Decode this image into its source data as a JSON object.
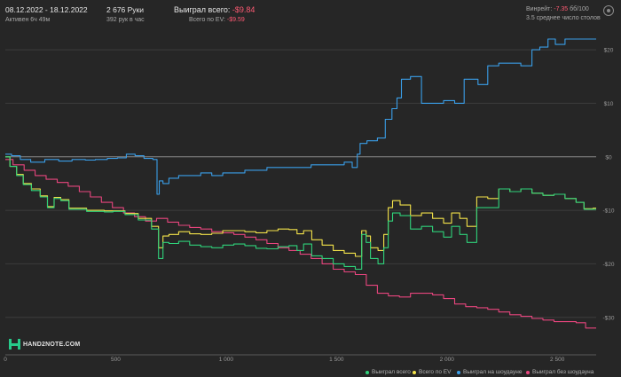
{
  "header": {
    "date_range": "08.12.2022 - 18.12.2022",
    "active_time": "Активен 6ч 49м",
    "hands": "2 676 Руки",
    "hands_per_hour": "392 рук в час",
    "won_total_label": "Выиграл всего:",
    "won_total_value": "-$9.84",
    "ev_total_label": "Всего по EV:",
    "ev_total_value": "-$9.59",
    "winrate_label": "Винрейт:",
    "winrate_value": "-7.35",
    "winrate_unit": "бб/100",
    "avg_tables": "3.5 среднее число столов"
  },
  "logo": {
    "text": "HAND2NOTE.COM"
  },
  "icons": {
    "settings": "gear-icon",
    "logo": "hand2note-logo-icon"
  },
  "chart_data": {
    "type": "line",
    "xlim": [
      0,
      2676
    ],
    "ylim": [
      -37,
      23
    ],
    "x_ticks": [
      0,
      500,
      1000,
      1500,
      2000,
      2500
    ],
    "x_tick_labels": [
      "0",
      "500",
      "1 000",
      "1 500",
      "2 000",
      "2 500"
    ],
    "y_ticks": [
      20,
      10,
      0,
      -10,
      -20,
      -30
    ],
    "y_tick_labels": [
      "$20",
      "$10",
      "$0",
      "-$10",
      "-$20",
      "-$30"
    ],
    "grid": true,
    "legend_position": "bottom-right",
    "series": [
      {
        "name": "Выиграл всего",
        "color": "#2fd27a",
        "x": [
          0,
          30,
          60,
          90,
          130,
          170,
          200,
          230,
          260,
          300,
          340,
          380,
          420,
          460,
          500,
          560,
          620,
          680,
          700,
          720,
          750,
          800,
          850,
          900,
          950,
          1000,
          1050,
          1100,
          1150,
          1200,
          1250,
          1300,
          1330,
          1360,
          1400,
          1450,
          1500,
          1550,
          1600,
          1620,
          1640,
          1660,
          1700,
          1720,
          1740,
          1760,
          1800,
          1850,
          1900,
          1950,
          2000,
          2030,
          2070,
          2100,
          2150,
          2200,
          2250,
          2300,
          2350,
          2400,
          2450,
          2500,
          2550,
          2600,
          2630,
          2676
        ],
        "y": [
          0,
          -1.8,
          -3.5,
          -5.2,
          -6.3,
          -7.5,
          -9.5,
          -7.8,
          -8.2,
          -9.8,
          -9.8,
          -10.2,
          -10.2,
          -10.3,
          -10.2,
          -10.8,
          -11.8,
          -13.5,
          -19,
          -16,
          -16.2,
          -15.8,
          -16.5,
          -16.8,
          -17,
          -16.5,
          -16.3,
          -16.6,
          -17.1,
          -17.2,
          -16.8,
          -16.6,
          -17.5,
          -16.3,
          -18.5,
          -19,
          -20,
          -20.5,
          -21,
          -14.5,
          -16,
          -19,
          -20,
          -17,
          -12,
          -10.5,
          -11,
          -13.5,
          -13,
          -14,
          -15,
          -13,
          -14.5,
          -16,
          -9.5,
          -9.5,
          -6,
          -6.5,
          -6,
          -6.8,
          -7.2,
          -7,
          -7.8,
          -8.5,
          -9.8,
          -9.8
        ]
      },
      {
        "name": "Всего по EV",
        "color": "#f4e34a",
        "x": [
          0,
          30,
          60,
          90,
          130,
          170,
          200,
          230,
          260,
          300,
          340,
          380,
          420,
          460,
          500,
          560,
          620,
          680,
          700,
          720,
          750,
          800,
          850,
          900,
          950,
          1000,
          1050,
          1100,
          1150,
          1200,
          1250,
          1300,
          1330,
          1360,
          1400,
          1450,
          1500,
          1550,
          1600,
          1620,
          1640,
          1660,
          1700,
          1720,
          1740,
          1760,
          1800,
          1850,
          1900,
          1950,
          2000,
          2030,
          2070,
          2100,
          2150,
          2200,
          2250,
          2300,
          2350,
          2400,
          2450,
          2500,
          2550,
          2600,
          2630,
          2676
        ],
        "y": [
          0,
          -1.8,
          -3.3,
          -5,
          -6,
          -7.3,
          -9.3,
          -7.6,
          -8,
          -9.6,
          -9.6,
          -10,
          -10,
          -10.1,
          -10.1,
          -10.6,
          -11.5,
          -13,
          -17,
          -14.8,
          -14.5,
          -14,
          -14.4,
          -14.5,
          -14.3,
          -13.8,
          -13.8,
          -14,
          -14.2,
          -13.8,
          -13.5,
          -13.6,
          -14.4,
          -13.8,
          -15.5,
          -16.5,
          -17.5,
          -18,
          -18.6,
          -13.8,
          -14.8,
          -17,
          -17.5,
          -14.5,
          -9.5,
          -8.2,
          -9,
          -11,
          -10.5,
          -11.5,
          -12.4,
          -10.5,
          -11.5,
          -13,
          -7.5,
          -7.8,
          -6,
          -6.5,
          -6,
          -6.8,
          -7.2,
          -7,
          -7.8,
          -8.5,
          -9.7,
          -9.6
        ]
      },
      {
        "name": "Выиграл на шоудауне",
        "color": "#3a9ee8",
        "x": [
          0,
          40,
          80,
          130,
          200,
          260,
          320,
          380,
          420,
          480,
          520,
          560,
          600,
          640,
          680,
          690,
          700,
          720,
          750,
          800,
          850,
          900,
          950,
          1000,
          1050,
          1100,
          1150,
          1200,
          1250,
          1300,
          1350,
          1400,
          1450,
          1500,
          1550,
          1580,
          1600,
          1610,
          1650,
          1700,
          1730,
          1760,
          1780,
          1800,
          1850,
          1900,
          1950,
          2000,
          2050,
          2090,
          2120,
          2150,
          2200,
          2250,
          2300,
          2350,
          2400,
          2430,
          2470,
          2500,
          2550,
          2600,
          2676
        ],
        "y": [
          0.5,
          0.2,
          -0.5,
          -1,
          -0.5,
          -0.8,
          -0.5,
          -0.6,
          -0.5,
          -0.3,
          -0.2,
          0.5,
          0.2,
          -0.3,
          -0.5,
          -7,
          -4.5,
          -5,
          -4,
          -3.5,
          -3.5,
          -3,
          -3.5,
          -3,
          -3,
          -2.5,
          -2.5,
          -2,
          -2,
          -2,
          -2,
          -1.5,
          -1.5,
          -1.5,
          -1,
          -2,
          0.5,
          2.5,
          3,
          3.5,
          7,
          9,
          11,
          14.5,
          15,
          10,
          10,
          10.5,
          10,
          14.5,
          14.5,
          13.5,
          17,
          17.5,
          17.5,
          17,
          20,
          20.5,
          22,
          21,
          22,
          22,
          22
        ]
      },
      {
        "name": "Выиграл без шоудауна",
        "color": "#e8457e",
        "x": [
          0,
          50,
          100,
          150,
          200,
          250,
          300,
          350,
          400,
          450,
          500,
          550,
          600,
          650,
          700,
          750,
          800,
          850,
          900,
          950,
          1000,
          1050,
          1100,
          1150,
          1200,
          1250,
          1300,
          1350,
          1400,
          1450,
          1500,
          1550,
          1600,
          1650,
          1700,
          1750,
          1800,
          1850,
          1900,
          1950,
          2000,
          2050,
          2100,
          2150,
          2200,
          2250,
          2300,
          2350,
          2400,
          2450,
          2500,
          2550,
          2600,
          2640,
          2676
        ],
        "y": [
          -0.5,
          -1.5,
          -2.5,
          -3.5,
          -4.2,
          -4.8,
          -5.5,
          -6.5,
          -7.5,
          -8.5,
          -9.5,
          -10.5,
          -11.2,
          -12,
          -11.5,
          -12.2,
          -12.8,
          -13.2,
          -13.5,
          -14,
          -14.2,
          -14.5,
          -15,
          -15.5,
          -16.2,
          -17,
          -17.5,
          -18.2,
          -19,
          -20,
          -21,
          -21.5,
          -22,
          -24,
          -25.5,
          -26,
          -26.2,
          -25.5,
          -25.5,
          -25.8,
          -26.5,
          -27.5,
          -28,
          -28.2,
          -28.5,
          -29,
          -29.5,
          -29.8,
          -30.2,
          -30.5,
          -30.8,
          -30.8,
          -31,
          -32,
          -32
        ]
      }
    ]
  }
}
